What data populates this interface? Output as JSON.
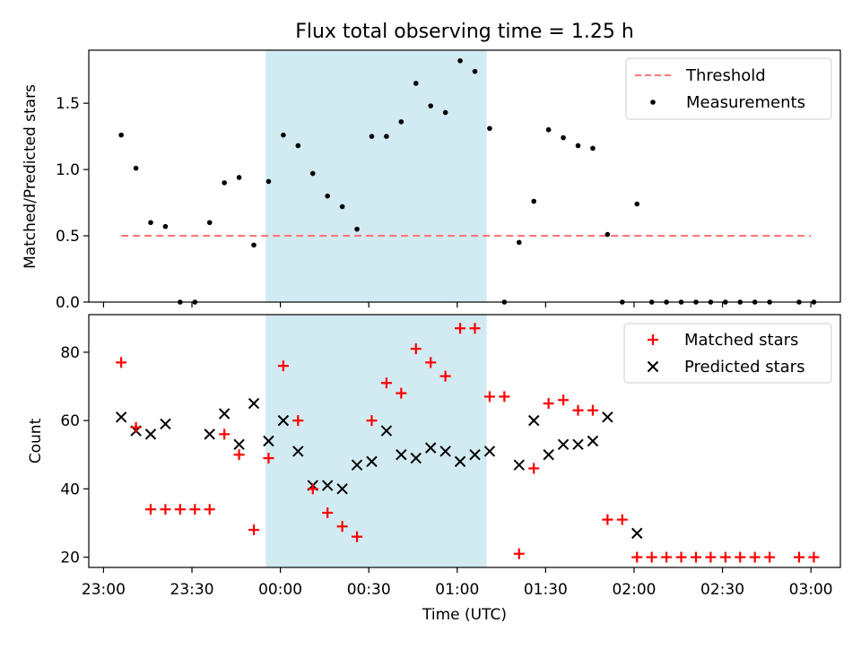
{
  "figure": {
    "title": "Flux total observing time = 1.25 h"
  },
  "colors": {
    "threshold": "#ff7777",
    "measurement": "#000000",
    "matched": "#ff0000",
    "predicted": "#000000",
    "shade": "#add8e6"
  },
  "chart_data": [
    {
      "type": "scatter",
      "ylabel": "Matched/Predicted stars",
      "xlabel": "",
      "xlim": [
        "22:55",
        "03:10"
      ],
      "ylim": [
        0,
        1.9
      ],
      "yticks": [
        0.0,
        0.5,
        1.0,
        1.5
      ],
      "ytick_labels": [
        "0.0",
        "0.5",
        "1.0",
        "1.5"
      ],
      "shaded_interval": [
        "23:55",
        "01:10"
      ],
      "legend": {
        "position": "top-right",
        "entries": [
          "Threshold",
          "Measurements"
        ]
      },
      "threshold": {
        "name": "Threshold",
        "y": 0.5,
        "x_range": [
          "23:06",
          "03:00"
        ]
      },
      "series": [
        {
          "name": "Measurements",
          "x": [
            "23:06",
            "23:11",
            "23:16",
            "23:21",
            "23:26",
            "23:31",
            "23:36",
            "23:41",
            "23:46",
            "23:51",
            "23:56",
            "00:01",
            "00:06",
            "00:11",
            "00:16",
            "00:21",
            "00:26",
            "00:31",
            "00:36",
            "00:41",
            "00:46",
            "00:51",
            "00:56",
            "01:01",
            "01:06",
            "01:11",
            "01:16",
            "01:21",
            "01:26",
            "01:31",
            "01:36",
            "01:41",
            "01:46",
            "01:51",
            "01:56",
            "02:01",
            "02:06",
            "02:11",
            "02:16",
            "02:21",
            "02:26",
            "02:31",
            "02:36",
            "02:41",
            "02:46",
            "02:56",
            "03:01"
          ],
          "y": [
            1.26,
            1.01,
            0.6,
            0.57,
            0.0,
            0.0,
            0.6,
            0.9,
            0.94,
            0.43,
            0.91,
            1.26,
            1.18,
            0.97,
            0.8,
            0.72,
            0.55,
            1.25,
            1.25,
            1.36,
            1.65,
            1.48,
            1.43,
            1.82,
            1.74,
            1.31,
            0.0,
            0.45,
            0.76,
            1.3,
            1.24,
            1.18,
            1.16,
            0.51,
            0.0,
            0.74,
            0.0,
            0.0,
            0.0,
            0.0,
            0.0,
            0.0,
            0.0,
            0.0,
            0.0,
            0.0,
            0.0
          ]
        }
      ]
    },
    {
      "type": "scatter",
      "ylabel": "Count",
      "xlabel": "Time (UTC)",
      "xlim": [
        "22:55",
        "03:10"
      ],
      "ylim": [
        17,
        91
      ],
      "yticks": [
        20,
        40,
        60,
        80
      ],
      "ytick_labels": [
        "20",
        "40",
        "60",
        "80"
      ],
      "xticks": [
        "23:00",
        "23:30",
        "00:00",
        "00:30",
        "01:00",
        "01:30",
        "02:00",
        "02:30",
        "03:00"
      ],
      "xtick_labels": [
        "23:00",
        "23:30",
        "00:00",
        "00:30",
        "01:00",
        "01:30",
        "02:00",
        "02:30",
        "03:00"
      ],
      "shaded_interval": [
        "23:55",
        "01:10"
      ],
      "legend": {
        "position": "top-right",
        "entries": [
          "Matched stars",
          "Predicted stars"
        ]
      },
      "series": [
        {
          "name": "Matched stars",
          "x": [
            "23:06",
            "23:11",
            "23:16",
            "23:21",
            "23:26",
            "23:31",
            "23:36",
            "23:41",
            "23:46",
            "23:51",
            "23:56",
            "00:01",
            "00:06",
            "00:11",
            "00:16",
            "00:21",
            "00:26",
            "00:31",
            "00:36",
            "00:41",
            "00:46",
            "00:51",
            "00:56",
            "01:01",
            "01:06",
            "01:11",
            "01:16",
            "01:21",
            "01:26",
            "01:31",
            "01:36",
            "01:41",
            "01:46",
            "01:51",
            "01:56",
            "02:01",
            "02:06",
            "02:11",
            "02:16",
            "02:21",
            "02:26",
            "02:31",
            "02:36",
            "02:41",
            "02:46",
            "02:56",
            "03:01"
          ],
          "y": [
            77,
            58,
            34,
            34,
            34,
            34,
            34,
            56,
            50,
            28,
            49,
            76,
            60,
            40,
            33,
            29,
            26,
            60,
            71,
            68,
            81,
            77,
            73,
            87,
            87,
            67,
            67,
            21,
            46,
            65,
            66,
            63,
            63,
            31,
            31,
            20,
            20,
            20,
            20,
            20,
            20,
            20,
            20,
            20,
            20,
            20,
            20
          ]
        },
        {
          "name": "Predicted stars",
          "x": [
            "23:06",
            "23:11",
            "23:16",
            "23:21",
            "23:36",
            "23:41",
            "23:46",
            "23:51",
            "23:56",
            "00:01",
            "00:06",
            "00:11",
            "00:16",
            "00:21",
            "00:26",
            "00:31",
            "00:36",
            "00:41",
            "00:46",
            "00:51",
            "00:56",
            "01:01",
            "01:06",
            "01:11",
            "01:21",
            "01:26",
            "01:31",
            "01:36",
            "01:41",
            "01:46",
            "01:51",
            "02:01"
          ],
          "y": [
            61,
            57,
            56,
            59,
            56,
            62,
            53,
            65,
            54,
            60,
            51,
            41,
            41,
            40,
            47,
            48,
            57,
            50,
            49,
            52,
            51,
            48,
            50,
            51,
            47,
            60,
            50,
            53,
            53,
            54,
            61,
            27
          ]
        }
      ]
    }
  ]
}
